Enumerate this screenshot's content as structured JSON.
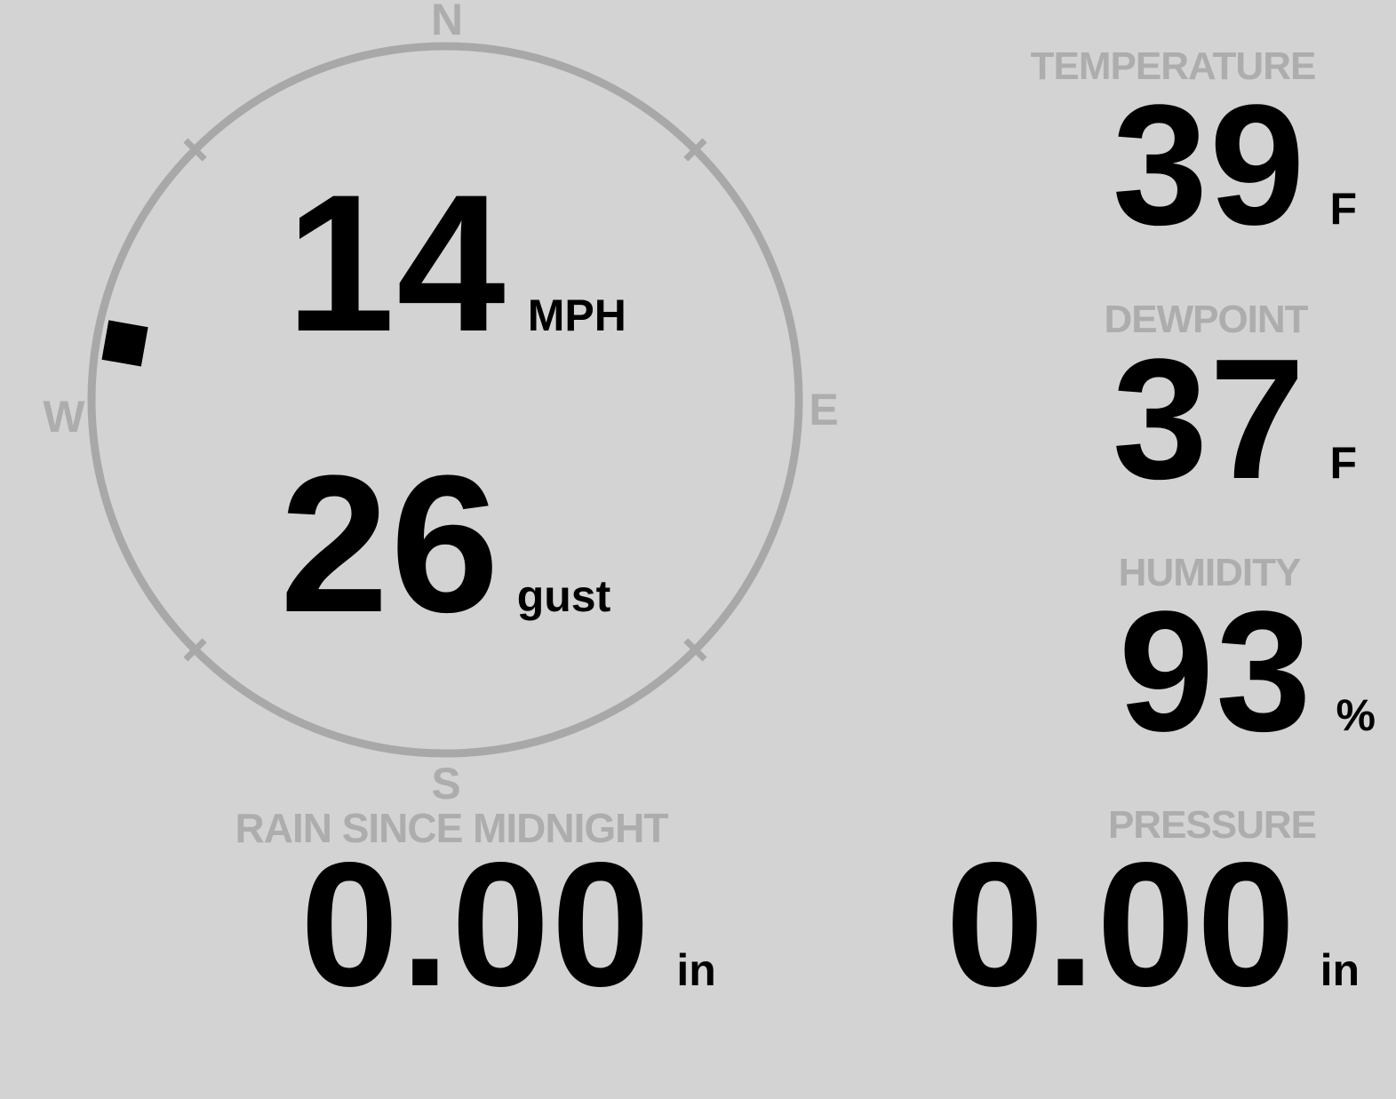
{
  "theme": {
    "bg": "#d3d3d3",
    "muted": "#adadad",
    "ring": "#a8a8a8",
    "ink": "#000000"
  },
  "compass": {
    "cardinals": {
      "north": "N",
      "east": "E",
      "south": "S",
      "west": "W"
    },
    "wind_direction_degrees": 280,
    "speed": {
      "value": "14",
      "unit": "MPH"
    },
    "gust": {
      "value": "26",
      "unit": "gust"
    }
  },
  "metrics": {
    "temperature": {
      "label": "TEMPERATURE",
      "value": "39",
      "unit": "F"
    },
    "dewpoint": {
      "label": "DEWPOINT",
      "value": "37",
      "unit": "F"
    },
    "humidity": {
      "label": "HUMIDITY",
      "value": "93",
      "unit": "%"
    },
    "rain": {
      "label": "RAIN SINCE MIDNIGHT",
      "value": "0.00",
      "unit": "in"
    },
    "pressure": {
      "label": "PRESSURE",
      "value": "0.00",
      "unit": "in"
    }
  }
}
